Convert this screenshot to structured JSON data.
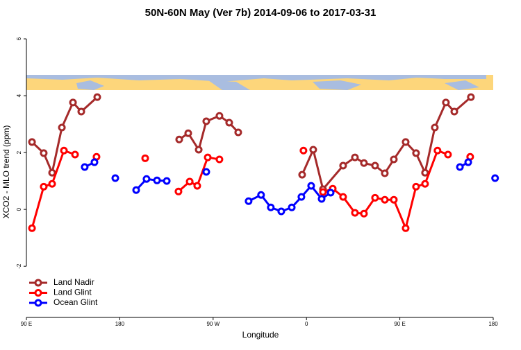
{
  "chart_data": {
    "type": "line",
    "title": "50N-60N May (Ver 7b)   2014-09-06 to 2017-03-31",
    "x_label": "Longitude",
    "y_label": "XCO2 - MLO trend (ppm)",
    "xlim": [
      90,
      540
    ],
    "ylim": [
      -3.8,
      6.44
    ],
    "xticks": [
      {
        "value": 90,
        "label": "90 E"
      },
      180,
      {
        "value": 270,
        "label": "90 W"
      },
      {
        "value": 360,
        "label": "0"
      },
      {
        "value": 450,
        "label": "90 E"
      },
      {
        "value": 540,
        "label": "180"
      }
    ],
    "yticks": [
      -2,
      0,
      2,
      4,
      6
    ],
    "legend": "bottom-left",
    "series": [
      {
        "name": "Land Nadir",
        "color": "#a52a2a",
        "x": [
          95.4,
          106.7,
          114.8,
          124.2,
          134.9,
          142.9,
          158.3,
          null,
          237.3,
          246.0,
          256.1,
          263.4,
          276.1,
          285.5,
          294.2,
          null,
          355.8,
          366.5,
          375.9,
          395.3,
          406.7,
          415.4,
          426.1,
          435.5,
          444.2,
          455.6,
          465.6,
          474.3,
          483.7,
          494.4,
          502.5,
          518.5
        ],
        "values": [
          2.37,
          1.98,
          1.29,
          2.88,
          3.76,
          3.44,
          3.95,
          null,
          2.46,
          2.68,
          2.1,
          3.1,
          3.29,
          3.05,
          2.71,
          null,
          1.22,
          2.1,
          0.71,
          1.54,
          1.83,
          1.63,
          1.54,
          1.27,
          1.76,
          2.37,
          1.98,
          1.29,
          2.88,
          3.76,
          3.44,
          3.95
        ]
      },
      {
        "name": "Land Glint",
        "color": "#ff0000",
        "x": [
          95.4,
          106.7,
          114.8,
          126.2,
          136.9,
          null,
          157.6,
          null,
          204.5,
          null,
          236.6,
          247.4,
          254.7,
          264.8,
          276.1,
          null,
          357.1,
          null,
          375.9,
          385.3,
          395.3,
          406.7,
          415.4,
          426.1,
          435.5,
          444.2,
          455.6,
          465.6,
          474.3,
          486.3,
          496.4,
          null,
          517.8
        ],
        "values": [
          -0.66,
          0.8,
          0.9,
          2.07,
          1.93,
          null,
          1.85,
          null,
          1.8,
          null,
          0.63,
          0.98,
          0.83,
          1.83,
          1.76,
          null,
          2.07,
          null,
          0.61,
          0.73,
          0.44,
          -0.12,
          -0.15,
          0.41,
          0.34,
          0.34,
          -0.66,
          0.8,
          0.9,
          2.07,
          1.93,
          null,
          1.85
        ]
      },
      {
        "name": "Ocean Glint",
        "color": "#0000ff",
        "x": [
          146.2,
          155.6,
          null,
          175.7,
          null,
          195.8,
          205.8,
          215.9,
          225.3,
          null,
          263.4,
          null,
          304.2,
          316.2,
          325.6,
          335.7,
          345.8,
          355.1,
          364.5,
          374.6,
          383.3,
          null,
          507.9,
          515.9,
          null,
          541.8
        ],
        "values": [
          1.49,
          1.66,
          null,
          1.1,
          null,
          0.68,
          1.07,
          1.02,
          1.0,
          null,
          1.32,
          null,
          0.29,
          0.51,
          0.07,
          -0.07,
          0.07,
          0.44,
          0.83,
          0.37,
          0.59,
          null,
          1.49,
          1.66,
          null,
          1.1
        ]
      }
    ]
  }
}
